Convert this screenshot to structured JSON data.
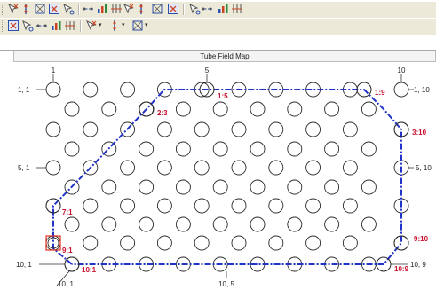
{
  "toolbar": {
    "row1_icons": [
      "select-tube-icon",
      "select-column-icon",
      "select-row-icon",
      "select-box-icon",
      "select-region-icon",
      "path-select-icon",
      "path-add-icon",
      "path-mark-icon",
      "spread-horizontal-icon",
      "spread-vertical-icon",
      "chart-icon",
      "table-icon",
      "align-bottom-icon",
      "align-top-icon",
      "align-left-icon",
      "align-right-icon"
    ],
    "row2_icons": [
      "layout-a-icon",
      "layout-b-icon",
      "layout-c-icon",
      "layout-d-icon",
      "layout-e-icon",
      "zoom-icon",
      "grid-icon",
      "link-icon"
    ]
  },
  "map": {
    "title": "Tube Field Map",
    "labels": {
      "top_left": "1",
      "top_mid": "5",
      "top_right": "10",
      "left_row1": "1, 1",
      "right_row1": "1, 10",
      "left_row5": "5, 1",
      "right_row5": "5, 10",
      "left_row10": "10, 1",
      "right_row10": "10, 9",
      "bottom_left": "10, 1",
      "bottom_mid": "10, 5"
    },
    "path_labels": [
      {
        "text": "1:5"
      },
      {
        "text": "1:9"
      },
      {
        "text": "2:3"
      },
      {
        "text": "3:10"
      },
      {
        "text": "7:1"
      },
      {
        "text": "9:1"
      },
      {
        "text": "9:10"
      },
      {
        "text": "10:1"
      },
      {
        "text": "10:9"
      }
    ],
    "colors": {
      "path": "#2233c8",
      "path_label": "#c8102e",
      "selected": "#e0301e",
      "tube": "#2a2a2a"
    }
  }
}
